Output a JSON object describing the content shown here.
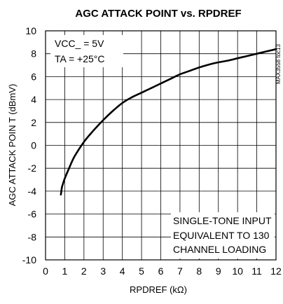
{
  "chart_data": {
    "type": "line",
    "title": "AGC ATTACK POINT vs. RPDREF",
    "xlabel": "RPDREF (kΩ)",
    "ylabel": "AGC ATTACK POIN T (dBmV)",
    "xlim": [
      0,
      12
    ],
    "ylim": [
      -10,
      10
    ],
    "xticks": [
      "0",
      "1",
      "2",
      "3",
      "4",
      "5",
      "6",
      "7",
      "8",
      "9",
      "10",
      "11",
      "12"
    ],
    "yticks": [
      "10",
      "8",
      "6",
      "4",
      "2",
      "0",
      "-2",
      "-4",
      "-6",
      "-8",
      "-10"
    ],
    "grid": true,
    "conditions": [
      "VCC_ = 5V",
      "TA = +25°C"
    ],
    "note_lines": [
      "SINGLE-TONE INPUT",
      "EQUIVALENT TO 130",
      "CHANNEL LOADING"
    ],
    "figure_id": "MAX3558 toc13",
    "series": [
      {
        "x": [
          0.8,
          0.85,
          0.9,
          1.0,
          1.2,
          1.5,
          2.0,
          2.5,
          3.0,
          3.5,
          4.0,
          4.5,
          5.0,
          5.5,
          6.0,
          6.5,
          7.0,
          7.5,
          8.0,
          8.5,
          9.0,
          9.5,
          10.0,
          10.5,
          11.0,
          11.5,
          12.0
        ],
        "y": [
          -4.3,
          -3.7,
          -3.4,
          -2.9,
          -2.1,
          -1.0,
          0.3,
          1.3,
          2.2,
          3.0,
          3.7,
          4.2,
          4.6,
          5.0,
          5.4,
          5.8,
          6.2,
          6.5,
          6.8,
          7.05,
          7.25,
          7.4,
          7.6,
          7.8,
          8.0,
          8.2,
          8.4
        ]
      }
    ]
  }
}
